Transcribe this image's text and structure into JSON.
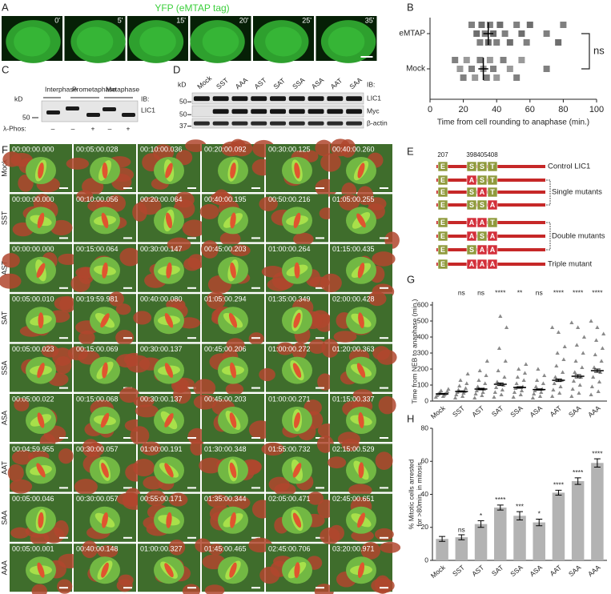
{
  "panel_labels": [
    "A",
    "B",
    "C",
    "D",
    "E",
    "F",
    "G",
    "H"
  ],
  "panel_a": {
    "title": "YFP (eMTAP tag)",
    "times": [
      "0'",
      "5'",
      "15'",
      "20'",
      "25'",
      "35'"
    ]
  },
  "panel_b": {
    "type": "scatter",
    "series": [
      {
        "name": "eMTAP",
        "color": "#6e6e6e",
        "values": [
          25,
          28,
          30,
          31,
          33,
          35,
          36,
          38,
          40,
          42,
          45,
          48,
          52,
          55,
          58,
          60,
          70,
          77,
          80
        ],
        "mean": 35,
        "error": 3
      },
      {
        "name": "Mock",
        "color": "#9a9a9a",
        "values": [
          15,
          18,
          20,
          22,
          25,
          27,
          30,
          32,
          34,
          36,
          38,
          40,
          44,
          48,
          52,
          55,
          70
        ],
        "mean": 32,
        "error": 3
      }
    ],
    "xlim": [
      0,
      100
    ],
    "xticks": [
      0,
      20,
      40,
      60,
      80,
      100
    ],
    "xlabel": "Time from cell rounding to anaphase (min.)",
    "annotation": "ns"
  },
  "panel_c": {
    "kd": "kD",
    "marker": "50",
    "phases": [
      "Interphase",
      "Prometaphase",
      "Metaphase"
    ],
    "ib": "IB:",
    "protein": "LIC1",
    "phos_label": "λ-Phos:",
    "phos": [
      "–",
      "–",
      "+",
      "–",
      "+"
    ]
  },
  "panel_d": {
    "kd": "kD",
    "lanes": [
      "Mock",
      "SST",
      "AAA",
      "AST",
      "SAT",
      "SSA",
      "ASA",
      "AAT",
      "SAA"
    ],
    "markers": [
      "50",
      "50",
      "37"
    ],
    "ib": "IB:",
    "proteins": [
      "LIC1",
      "Myc",
      "β-actin"
    ]
  },
  "panel_e": {
    "positions": [
      207,
      398,
      405,
      408
    ],
    "rows": [
      [
        "E",
        "S",
        "S",
        "T"
      ],
      [
        "E",
        "A",
        "S",
        "T"
      ],
      [
        "E",
        "S",
        "A",
        "T"
      ],
      [
        "E",
        "S",
        "S",
        "A"
      ],
      [
        "E",
        "A",
        "A",
        "T"
      ],
      [
        "E",
        "A",
        "S",
        "A"
      ],
      [
        "E",
        "S",
        "A",
        "A"
      ],
      [
        "E",
        "A",
        "A",
        "A"
      ]
    ],
    "labels": [
      "Control LIC1",
      "Single mutants",
      "Double mutants",
      "Triple mutant"
    ]
  },
  "panel_f": {
    "rows": [
      {
        "label": "Mock",
        "times": [
          "00:00:00.000",
          "00:05:00.028",
          "00:10:00.036",
          "00:20:00.092",
          "00:30:00.125",
          "00:40:00.260"
        ]
      },
      {
        "label": "SST",
        "times": [
          "00:00:00.000",
          "00:10:00.056",
          "00:20:00.064",
          "00:40:00.195",
          "00:50:00.216",
          "01:05:00.255"
        ]
      },
      {
        "label": "AST",
        "times": [
          "00:00:00.000",
          "00:15:00.064",
          "00:30:00.147",
          "00:45:00.203",
          "01:00:00.264",
          "01:15:00.435"
        ]
      },
      {
        "label": "SAT",
        "times": [
          "00:05:00.010",
          "00:19:59.981",
          "00:40:00.080",
          "01:05:00.294",
          "01:35:00.349",
          "02:00:00.428"
        ]
      },
      {
        "label": "SSA",
        "times": [
          "00:05:00.023",
          "00:15:00.069",
          "00:30:00.137",
          "00:45:00.206",
          "01:00:00.272",
          "01:20:00.363"
        ]
      },
      {
        "label": "ASA",
        "times": [
          "00:05:00.022",
          "00:15:00.068",
          "00:30:00.137",
          "00:45:00.203",
          "01:00:00.271",
          "01:15:00.337"
        ]
      },
      {
        "label": "AAT",
        "times": [
          "00:04:59.955",
          "00:30:00.057",
          "01:00:00.191",
          "01:30:00.348",
          "01:55:00.732",
          "02:15:00.529"
        ]
      },
      {
        "label": "SAA",
        "times": [
          "00:05:00.046",
          "00:30:00.057",
          "00:55:00.171",
          "01:35:00.344",
          "02:05:00.471",
          "02:45:00.651"
        ]
      },
      {
        "label": "AAA",
        "times": [
          "00:05:00.001",
          "00:40:00.148",
          "01:00:00.327",
          "01:45:00.465",
          "02:45:00.706",
          "03:20:00.971"
        ]
      }
    ]
  },
  "panel_g": {
    "type": "scatter",
    "ylabel": "Time from NEB to anaphase (min.)",
    "categories": [
      "Mock",
      "SST",
      "AST",
      "SAT",
      "SSA",
      "ASA",
      "AAT",
      "SAA",
      "AAA"
    ],
    "points": [
      [
        25,
        30,
        35,
        38,
        42,
        45,
        48,
        50,
        55,
        60,
        65,
        75
      ],
      [
        20,
        30,
        40,
        50,
        55,
        60,
        70,
        80,
        95,
        110,
        130,
        170
      ],
      [
        20,
        35,
        45,
        55,
        65,
        75,
        90,
        110,
        130,
        160,
        190,
        250
      ],
      [
        25,
        40,
        55,
        70,
        85,
        100,
        120,
        150,
        190,
        250,
        330,
        460,
        530
      ],
      [
        25,
        40,
        55,
        65,
        80,
        90,
        110,
        130,
        150,
        175,
        200,
        230
      ],
      [
        20,
        30,
        45,
        55,
        65,
        75,
        90,
        110,
        130,
        160,
        200
      ],
      [
        30,
        50,
        70,
        90,
        110,
        130,
        150,
        180,
        220,
        260,
        300,
        340,
        430,
        460
      ],
      [
        30,
        50,
        75,
        100,
        125,
        150,
        180,
        210,
        250,
        300,
        350,
        400,
        460,
        490
      ],
      [
        40,
        60,
        90,
        120,
        150,
        180,
        210,
        250,
        290,
        330,
        380,
        420,
        460,
        500
      ]
    ],
    "means": [
      45,
      60,
      75,
      105,
      85,
      72,
      130,
      155,
      190
    ],
    "errors": [
      3,
      4,
      5,
      8,
      5,
      4,
      8,
      10,
      10
    ],
    "significance": [
      null,
      "ns",
      "ns",
      "****",
      "**",
      "ns",
      "****",
      "****",
      "****"
    ],
    "color": "#8a8a8a",
    "ylim": [
      0,
      620
    ],
    "yticks": [
      0,
      100,
      200,
      300,
      400,
      500,
      600
    ]
  },
  "panel_h": {
    "type": "bar",
    "ylabel": [
      "% Mitotic cells arrested",
      "for >80min. in mitosis"
    ],
    "categories": [
      "Mock",
      "SST",
      "AST",
      "SAT",
      "SSA",
      "ASA",
      "AAT",
      "SAA",
      "AAA"
    ],
    "values": [
      13,
      14,
      22,
      32,
      27,
      23,
      41,
      48,
      59
    ],
    "errors": [
      1.5,
      1.5,
      2,
      1.5,
      2.5,
      2,
      1.5,
      2,
      2.5
    ],
    "significance": [
      null,
      "ns",
      "*",
      "****",
      "***",
      "*",
      "****",
      "****",
      "****"
    ],
    "color": "#b3b3b3",
    "ylim": [
      0,
      80
    ],
    "yticks": [
      0,
      20,
      40,
      60,
      80
    ]
  }
}
